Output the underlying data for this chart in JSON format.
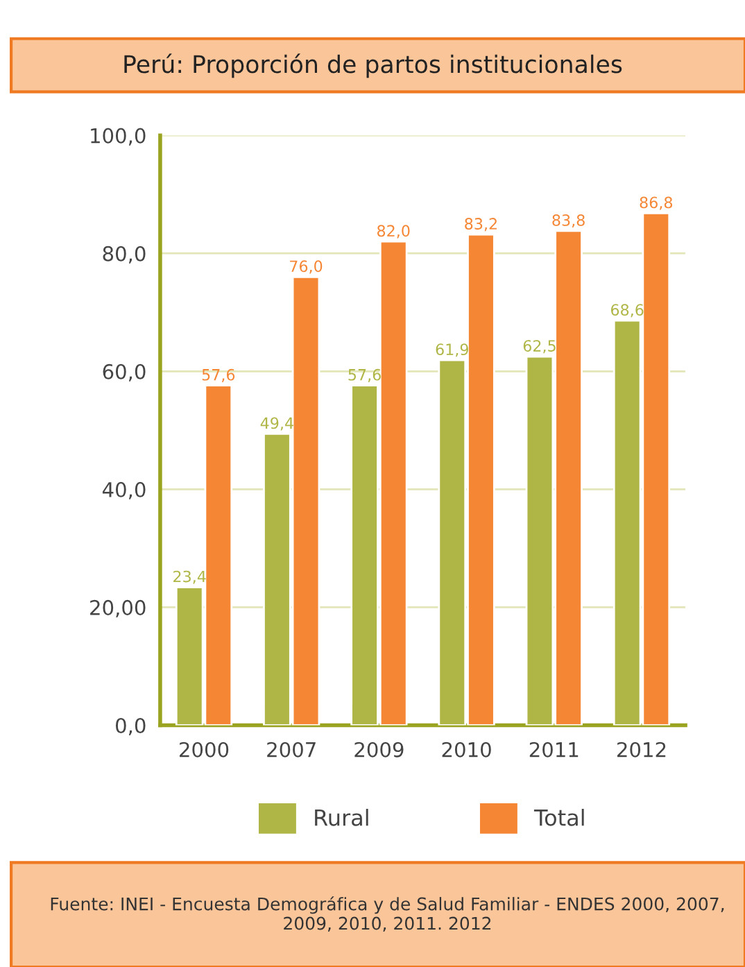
{
  "chart_data": {
    "type": "bar",
    "title": "Perú: Proporción de partos institucionales",
    "categories": [
      "2000",
      "2007",
      "2009",
      "2010",
      "2011",
      "2012"
    ],
    "series": [
      {
        "name": "Rural",
        "color": "#b0b646",
        "values": [
          23.4,
          49.4,
          57.6,
          61.9,
          62.5,
          68.6
        ],
        "value_labels": [
          "23,4",
          "49,4",
          "57,6",
          "61,9",
          "62,5",
          "68,6"
        ]
      },
      {
        "name": "Total",
        "color": "#f58634",
        "values": [
          57.6,
          76.0,
          82.0,
          83.2,
          83.8,
          86.8
        ],
        "value_labels": [
          "57,6",
          "76,0",
          "82,0",
          "83,2",
          "83,8",
          "86,8"
        ]
      }
    ],
    "ylim": [
      0,
      100
    ],
    "yticks": [
      {
        "value": 0,
        "label": "0,0"
      },
      {
        "value": 20,
        "label": "20,00"
      },
      {
        "value": 40,
        "label": "40,0"
      },
      {
        "value": 60,
        "label": "60,0"
      },
      {
        "value": 80,
        "label": "80,0"
      },
      {
        "value": 100,
        "label": "100,0"
      }
    ],
    "grid": "y",
    "legend": "bottom",
    "annotations": [
      "Fuente: INEI - Encuesta Demográfica y de Salud Familiar - ENDES 2000, 2007, 2009, 2010, 2011. 2012"
    ]
  }
}
